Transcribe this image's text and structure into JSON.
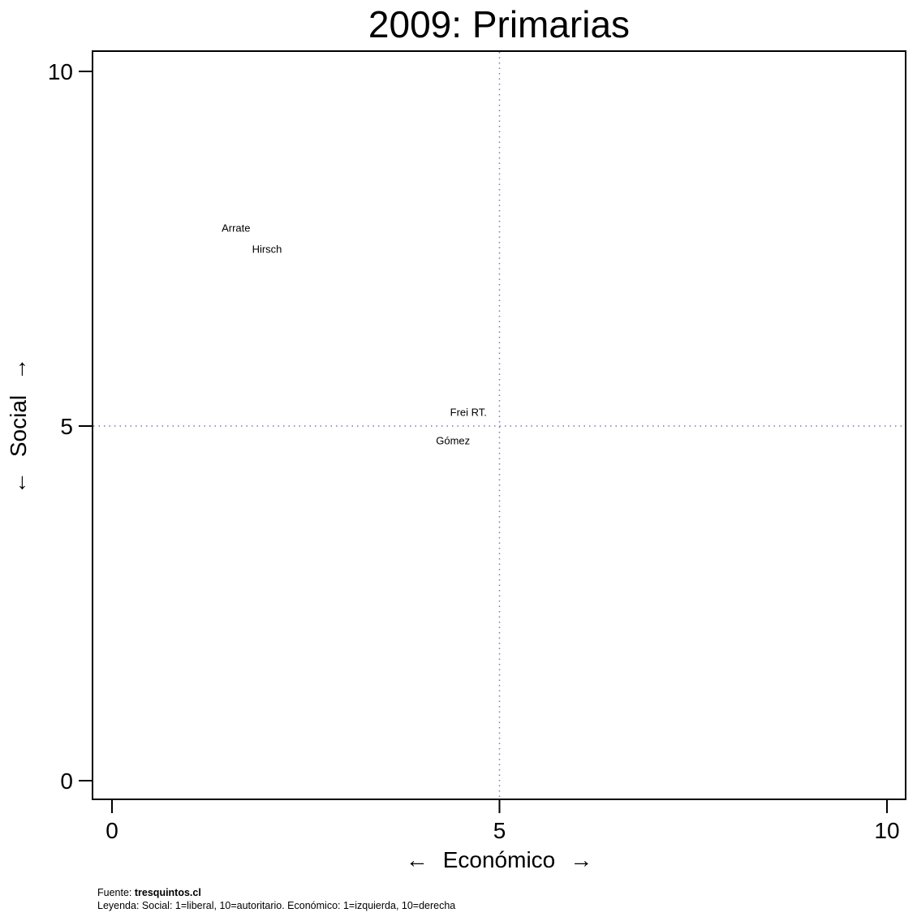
{
  "chart_data": {
    "type": "scatter",
    "title": "2009: Primarias",
    "xlabel": "Económico",
    "ylabel": "Social",
    "xlim": [
      0,
      10
    ],
    "ylim": [
      0,
      10
    ],
    "xticks": [
      0,
      5,
      10
    ],
    "yticks": [
      0,
      5,
      10
    ],
    "reference_lines": {
      "x": 5,
      "y": 5,
      "style": "dotted",
      "color": "#8a6fb3"
    },
    "points": [
      {
        "label": "Arrate",
        "x": 1.6,
        "y": 7.8
      },
      {
        "label": "Hirsch",
        "x": 2.0,
        "y": 7.5
      },
      {
        "label": "Frei RT.",
        "x": 4.6,
        "y": 5.2
      },
      {
        "label": "Gómez",
        "x": 4.4,
        "y": 4.8
      }
    ],
    "grid": false,
    "legend": "none"
  },
  "footer": {
    "source_prefix": "Fuente: ",
    "source_name": "tresquintos.cl",
    "legend_text": "Leyenda: Social: 1=liberal, 10=autoritario. Económico: 1=izquierda, 10=derecha"
  }
}
